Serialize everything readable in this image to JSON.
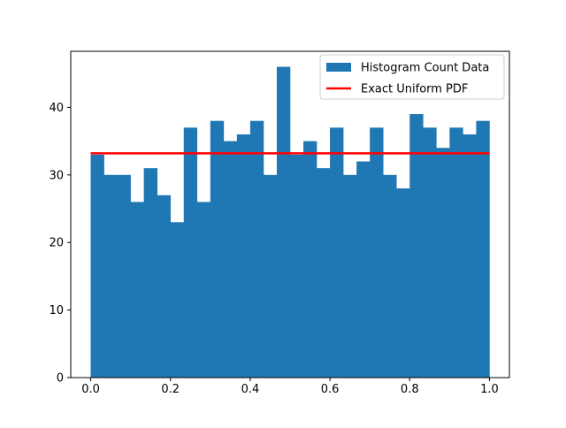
{
  "chart_data": {
    "type": "bar",
    "title": "",
    "xlabel": "",
    "ylabel": "",
    "xlim": [
      -0.05,
      1.05
    ],
    "ylim": [
      0,
      48.3
    ],
    "xticks": [
      0.0,
      0.2,
      0.4,
      0.6,
      0.8,
      1.0
    ],
    "xtick_labels": [
      "0.0",
      "0.2",
      "0.4",
      "0.6",
      "0.8",
      "1.0"
    ],
    "yticks": [
      0,
      10,
      20,
      30,
      40
    ],
    "ytick_labels": [
      "0",
      "10",
      "20",
      "30",
      "40"
    ],
    "grid": false,
    "legend": {
      "placement": "upper right",
      "entries": [
        {
          "label": "Histogram Count Data",
          "kind": "patch",
          "color": "#1f77b4"
        },
        {
          "label": "Exact Uniform PDF",
          "kind": "line",
          "color": "#ff0000"
        }
      ]
    },
    "series": [
      {
        "name": "Histogram Count Data",
        "type": "histogram",
        "color": "#1f77b4",
        "bin_start": 0.0,
        "bin_end": 1.0,
        "counts": [
          33,
          30,
          30,
          26,
          31,
          27,
          23,
          37,
          26,
          38,
          35,
          36,
          38,
          30,
          46,
          33,
          35,
          31,
          37,
          30,
          32,
          37,
          30,
          28,
          39,
          37,
          34,
          37,
          36,
          38
        ]
      },
      {
        "name": "Exact Uniform PDF",
        "type": "line",
        "color": "#ff0000",
        "x": [
          0.0,
          1.0
        ],
        "y": [
          33.2,
          33.2
        ]
      }
    ]
  }
}
